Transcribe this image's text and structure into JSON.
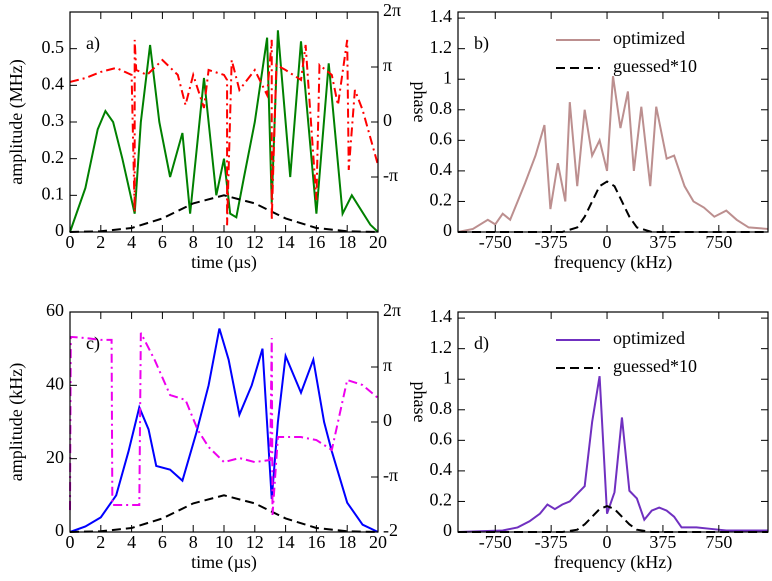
{
  "chart_data": [
    {
      "type": "line",
      "annotation": "a)",
      "xlabel": "time (µs)",
      "ylabel": "amplitude (MHz)",
      "y2label": "phase",
      "xlim": [
        0,
        20
      ],
      "xticks": [
        0,
        2,
        4,
        6,
        8,
        10,
        12,
        14,
        16,
        18,
        20
      ],
      "ylim": [
        0,
        0.6
      ],
      "yticks": [
        0,
        0.1,
        0.2,
        0.3,
        0.4,
        0.5
      ],
      "y2lim": [
        -6.2832,
        6.2832
      ],
      "y2ticks": [
        {
          "value": 6.2832,
          "label": "2π"
        },
        {
          "value": 3.1416,
          "label": "π"
        },
        0,
        {
          "value": -3.1416,
          "label": "-π"
        }
      ],
      "series": [
        {
          "color": "#008000",
          "dash": "solid",
          "x": [
            0,
            1,
            1.8,
            2.3,
            2.8,
            3.4,
            4.2,
            4.6,
            5.2,
            5.8,
            6.5,
            7.3,
            7.8,
            8.7,
            9.5,
            10,
            10.4,
            10.8,
            11.3,
            12,
            12.8,
            13.1,
            13.5,
            14.3,
            15,
            16,
            16.8,
            17.7,
            18.3,
            19.5,
            20
          ],
          "values": [
            0,
            0.12,
            0.28,
            0.33,
            0.3,
            0.2,
            0.05,
            0.3,
            0.51,
            0.3,
            0.15,
            0.27,
            0.05,
            0.42,
            0.1,
            0.2,
            0.05,
            0.04,
            0.15,
            0.3,
            0.53,
            0.08,
            0.55,
            0.15,
            0.52,
            0.05,
            0.46,
            0.05,
            0.1,
            0.02,
            0
          ]
        },
        {
          "color": "#000000",
          "dash": "dashed",
          "x": [
            0,
            2,
            4,
            6,
            8,
            10,
            12,
            14,
            16,
            18,
            20
          ],
          "values": [
            0,
            0.002,
            0.011,
            0.037,
            0.078,
            0.1,
            0.078,
            0.037,
            0.011,
            0.002,
            0
          ]
        },
        {
          "color": "#ff0000",
          "dash": "dashdot",
          "axis": "y2",
          "x": [
            0,
            1,
            2,
            3,
            4,
            4.2,
            4.2,
            4.3,
            5,
            6,
            7,
            7.5,
            8,
            8.7,
            9,
            10,
            10.2,
            10.2,
            10.5,
            11,
            12,
            12.8,
            13.1,
            13.1,
            13.4,
            14,
            15,
            15.3,
            16,
            16.2,
            17,
            17.4,
            18,
            18.1,
            18.5,
            19,
            20
          ],
          "values": [
            2.29,
            2.51,
            2.86,
            3.09,
            2.69,
            -5.14,
            4.69,
            2.97,
            2.69,
            3.54,
            2.69,
            0.97,
            2.69,
            0.8,
            2.97,
            2.69,
            2.4,
            -5.9,
            3.54,
            1.83,
            2.97,
            1.54,
            4.69,
            -5.6,
            3.26,
            2.97,
            2.4,
            4.4,
            -4.46,
            3.26,
            2.69,
            0.97,
            4.69,
            -2.74,
            1.83,
            0.69,
            -2.46
          ]
        }
      ]
    },
    {
      "type": "line",
      "annotation": "b)",
      "xlabel": "frequency (kHz)",
      "legend": "upper right",
      "xlim": [
        -1000,
        1080
      ],
      "xticks": [
        -750,
        -375,
        0,
        375,
        750
      ],
      "ylim": [
        0,
        1.44
      ],
      "yticks": [
        0,
        0.2,
        0.4,
        0.6,
        0.8,
        1,
        1.2,
        1.4
      ],
      "series": [
        {
          "name": "optimized",
          "color": "#bc8f8f",
          "dash": "solid",
          "x": [
            -1000,
            -900,
            -800,
            -750,
            -700,
            -650,
            -600,
            -550,
            -480,
            -420,
            -380,
            -330,
            -280,
            -250,
            -200,
            -150,
            -100,
            -50,
            0,
            40,
            90,
            140,
            180,
            230,
            290,
            330,
            400,
            450,
            520,
            580,
            650,
            720,
            800,
            870,
            950,
            1080
          ],
          "values": [
            0,
            0.02,
            0.08,
            0.05,
            0.12,
            0.08,
            0.2,
            0.32,
            0.5,
            0.7,
            0.15,
            0.45,
            0.2,
            0.85,
            0.3,
            0.8,
            0.5,
            0.6,
            0.4,
            1.02,
            0.68,
            0.92,
            0.4,
            0.82,
            0.3,
            0.82,
            0.48,
            0.5,
            0.3,
            0.2,
            0.16,
            0.1,
            0.14,
            0.08,
            0.03,
            0.02
          ]
        },
        {
          "name": "guessed*10",
          "color": "#000000",
          "dash": "dashed",
          "x": [
            -1000,
            -300,
            -200,
            -150,
            -100,
            -50,
            0,
            50,
            100,
            150,
            200,
            300,
            1080
          ],
          "values": [
            0,
            0,
            0.03,
            0.1,
            0.2,
            0.3,
            0.33,
            0.3,
            0.2,
            0.1,
            0.03,
            0,
            0
          ]
        }
      ]
    },
    {
      "type": "line",
      "annotation": "c)",
      "xlabel": "time (µs)",
      "ylabel": "amplitude (kHz)",
      "y2label": "phase",
      "xlim": [
        0,
        20
      ],
      "xticks": [
        0,
        2,
        4,
        6,
        8,
        10,
        12,
        14,
        16,
        18,
        20
      ],
      "ylim": [
        0,
        60
      ],
      "yticks": [
        0,
        20,
        40,
        60
      ],
      "y2lim": [
        -6.2832,
        6.2832
      ],
      "y2ticks": [
        {
          "value": 6.2832,
          "label": "2π"
        },
        {
          "value": 3.1416,
          "label": "π"
        },
        0,
        {
          "value": -3.1416,
          "label": "-π"
        },
        {
          "value": -6.2832,
          "label": "-2"
        }
      ],
      "series": [
        {
          "color": "#0000ff",
          "dash": "solid",
          "x": [
            0,
            1,
            2,
            3,
            3.8,
            4.5,
            5.1,
            5.6,
            6.5,
            7.3,
            8.2,
            9,
            9.7,
            10.3,
            11,
            11.8,
            12.5,
            13.1,
            13.5,
            14,
            15,
            15.8,
            16.5,
            17,
            18,
            19,
            20
          ],
          "values": [
            0,
            1.5,
            4,
            10,
            22,
            34,
            28,
            18,
            17,
            14,
            27,
            40,
            55.5,
            47,
            32,
            40,
            50,
            9,
            30,
            48,
            38,
            47,
            30,
            22,
            8,
            2,
            0
          ]
        },
        {
          "color": "#000000",
          "dash": "dashed",
          "x": [
            0,
            2,
            4,
            6,
            8,
            10,
            12,
            14,
            16,
            18,
            20
          ],
          "values": [
            0,
            0.2,
            1.1,
            3.7,
            7.8,
            10,
            7.8,
            3.7,
            1.1,
            0.2,
            0
          ]
        },
        {
          "color": "#ee00ee",
          "dash": "dashdot",
          "axis": "y2",
          "x": [
            0,
            0.05,
            1,
            2,
            2.7,
            2.75,
            4.5,
            4.6,
            5.5,
            6.5,
            7.5,
            8.3,
            9,
            10,
            11,
            12,
            13,
            13.1,
            13.15,
            13.5,
            15,
            16,
            17,
            18,
            19,
            20
          ],
          "values": [
            -5.03,
            4.86,
            4.8,
            4.69,
            4.69,
            -4.74,
            -4.74,
            5.09,
            3.54,
            1.54,
            1.26,
            -0.46,
            -1.43,
            -2.29,
            -2.06,
            -2.29,
            -2.17,
            4.8,
            -5.31,
            -0.86,
            -0.86,
            -1.03,
            -1.6,
            2.4,
            2.11,
            1.37
          ]
        }
      ]
    },
    {
      "type": "line",
      "annotation": "d)",
      "xlabel": "frequency (kHz)",
      "legend": "upper right",
      "xlim": [
        -1000,
        1080
      ],
      "xticks": [
        -750,
        -375,
        0,
        375,
        750
      ],
      "ylim": [
        0,
        1.44
      ],
      "yticks": [
        0,
        0.2,
        0.4,
        0.6,
        0.8,
        1,
        1.2,
        1.4
      ],
      "series": [
        {
          "name": "optimized",
          "color": "#7030c0",
          "dash": "solid",
          "x": [
            -1000,
            -700,
            -600,
            -520,
            -450,
            -400,
            -350,
            -300,
            -250,
            -200,
            -150,
            -100,
            -50,
            0,
            50,
            100,
            150,
            200,
            250,
            300,
            350,
            400,
            450,
            500,
            600,
            700,
            800,
            1080
          ],
          "values": [
            0,
            0.01,
            0.03,
            0.07,
            0.12,
            0.18,
            0.15,
            0.18,
            0.2,
            0.25,
            0.3,
            0.72,
            1.02,
            0.12,
            0.26,
            0.75,
            0.27,
            0.22,
            0.08,
            0.14,
            0.16,
            0.14,
            0.1,
            0.03,
            0.03,
            0.02,
            0.01,
            0.01
          ]
        },
        {
          "name": "guessed*10",
          "color": "#000000",
          "dash": "dashed",
          "x": [
            -1000,
            -300,
            -200,
            -150,
            -100,
            -50,
            0,
            50,
            100,
            150,
            200,
            300,
            1080
          ],
          "values": [
            0,
            0,
            0.015,
            0.05,
            0.1,
            0.15,
            0.17,
            0.15,
            0.1,
            0.05,
            0.015,
            0,
            0
          ]
        }
      ]
    }
  ]
}
